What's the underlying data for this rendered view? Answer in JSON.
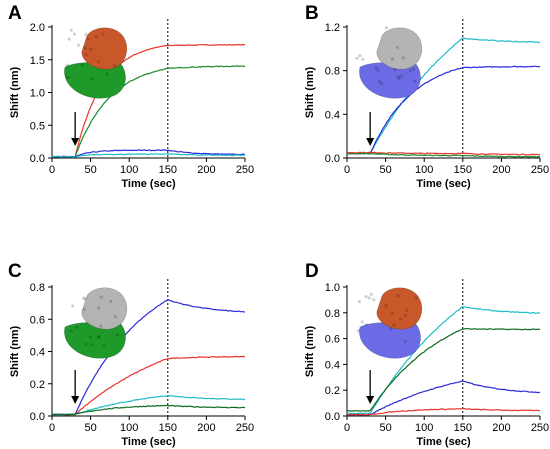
{
  "colors": {
    "red": "#e8332b",
    "green": "#1a8a2e",
    "blue": "#2a2ad8",
    "cyan": "#1fbcc8",
    "darkgreen": "#0e6a1e",
    "orange": "#c8582a",
    "protein_green": "#1f9a2a",
    "protein_gray": "#b4b4b4",
    "protein_purple": "#6b6be6"
  },
  "chart_data": [
    {
      "panel": "A",
      "type": "line",
      "xlabel": "Time (sec)",
      "ylabel": "Shift (nm)",
      "xlim": [
        0,
        250
      ],
      "ylim": [
        0,
        2.0
      ],
      "xticks": [
        0,
        50,
        100,
        150,
        200,
        250
      ],
      "yticks": [
        0.0,
        0.5,
        1.0,
        1.5,
        2.0
      ],
      "ytick_labels": [
        "0.0",
        "0.5",
        "1.0",
        "1.5",
        "2.0"
      ],
      "assoc_start": 30,
      "dissoc_start": 150,
      "arrow_x": 30,
      "protein": [
        "orange",
        "protein_green"
      ],
      "series": [
        {
          "color": "red",
          "base": 0.02,
          "assoc_plateau": 1.78,
          "assoc_k": 0.028,
          "dissoc_end": 1.73,
          "dissoc_k": 0.02
        },
        {
          "color": "green",
          "base": 0.02,
          "assoc_plateau": 1.47,
          "assoc_k": 0.022,
          "dissoc_end": 1.41,
          "dissoc_k": 0.02
        },
        {
          "color": "blue",
          "base": 0.02,
          "assoc_plateau": 0.12,
          "assoc_k": 0.05,
          "dissoc_end": 0.05,
          "dissoc_k": 0.03
        },
        {
          "color": "cyan",
          "base": 0.02,
          "assoc_plateau": 0.06,
          "assoc_k": 0.05,
          "dissoc_end": 0.04,
          "dissoc_k": 0.03
        }
      ]
    },
    {
      "panel": "B",
      "type": "line",
      "xlabel": "Time (sec)",
      "ylabel": "Shift (nm)",
      "xlim": [
        0,
        250
      ],
      "ylim": [
        0,
        1.2
      ],
      "xticks": [
        0,
        50,
        100,
        150,
        200,
        250
      ],
      "yticks": [
        0.0,
        0.4,
        0.8,
        1.2
      ],
      "ytick_labels": [
        "0.0",
        "0.4",
        "0.8",
        "1.2"
      ],
      "assoc_start": 30,
      "dissoc_start": 150,
      "arrow_x": 30,
      "protein": [
        "protein_gray",
        "protein_purple"
      ],
      "series": [
        {
          "color": "cyan",
          "base": 0.04,
          "assoc_plateau": 1.9,
          "assoc_k": 0.007,
          "dissoc_end": 1.05,
          "dissoc_k": 0.015
        },
        {
          "color": "blue",
          "base": 0.04,
          "assoc_plateau": 0.93,
          "assoc_k": 0.018,
          "dissoc_end": 0.84,
          "dissoc_k": 0.02
        },
        {
          "color": "red",
          "base": 0.05,
          "assoc_plateau": 0.04,
          "assoc_k": 0.02,
          "dissoc_end": 0.03,
          "dissoc_k": 0.02
        },
        {
          "color": "green",
          "base": 0.04,
          "assoc_plateau": 0.02,
          "assoc_k": 0.02,
          "dissoc_end": 0.01,
          "dissoc_k": 0.02
        }
      ]
    },
    {
      "panel": "C",
      "type": "line",
      "xlabel": "Time (sec)",
      "ylabel": "Shift (nm)",
      "xlim": [
        0,
        250
      ],
      "ylim": [
        0,
        0.8
      ],
      "xticks": [
        0,
        50,
        100,
        150,
        200,
        250
      ],
      "yticks": [
        0.0,
        0.2,
        0.4,
        0.6,
        0.8
      ],
      "ytick_labels": [
        "0.0",
        "0.2",
        "0.4",
        "0.6",
        "0.8"
      ],
      "assoc_start": 30,
      "dissoc_start": 150,
      "arrow_x": 30,
      "protein": [
        "protein_gray",
        "protein_green"
      ],
      "series": [
        {
          "color": "blue",
          "base": 0.01,
          "assoc_plateau": 0.98,
          "assoc_k": 0.011,
          "dissoc_end": 0.63,
          "dissoc_k": 0.018
        },
        {
          "color": "red",
          "base": 0.01,
          "assoc_plateau": 0.62,
          "assoc_k": 0.007,
          "dissoc_end": 0.37,
          "dissoc_k": 0.02
        },
        {
          "color": "cyan",
          "base": 0.01,
          "assoc_plateau": 0.2,
          "assoc_k": 0.008,
          "dissoc_end": 0.1,
          "dissoc_k": 0.02
        },
        {
          "color": "darkgreen",
          "base": 0.01,
          "assoc_plateau": 0.07,
          "assoc_k": 0.02,
          "dissoc_end": 0.05,
          "dissoc_k": 0.02
        }
      ]
    },
    {
      "panel": "D",
      "type": "line",
      "xlabel": "Time (sec)",
      "ylabel": "Shift (nm)",
      "xlim": [
        0,
        250
      ],
      "ylim": [
        0,
        1.0
      ],
      "xticks": [
        0,
        50,
        100,
        150,
        200,
        250
      ],
      "yticks": [
        0.0,
        0.2,
        0.4,
        0.6,
        0.8,
        1.0
      ],
      "ytick_labels": [
        "0.0",
        "0.2",
        "0.4",
        "0.6",
        "0.8",
        "1.0"
      ],
      "assoc_start": 30,
      "dissoc_start": 150,
      "arrow_x": 30,
      "protein": [
        "orange",
        "protein_purple"
      ],
      "series": [
        {
          "color": "cyan",
          "base": 0.02,
          "assoc_plateau": 1.55,
          "assoc_k": 0.0065,
          "dissoc_end": 0.79,
          "dissoc_k": 0.02
        },
        {
          "color": "darkgreen",
          "base": 0.04,
          "assoc_plateau": 0.95,
          "assoc_k": 0.01,
          "dissoc_end": 0.67,
          "dissoc_k": 0.02
        },
        {
          "color": "blue",
          "base": 0.01,
          "assoc_plateau": 0.45,
          "assoc_k": 0.0075,
          "dissoc_end": 0.17,
          "dissoc_k": 0.02
        },
        {
          "color": "red",
          "base": 0.01,
          "assoc_plateau": 0.06,
          "assoc_k": 0.02,
          "dissoc_end": 0.04,
          "dissoc_k": 0.02
        }
      ]
    }
  ]
}
